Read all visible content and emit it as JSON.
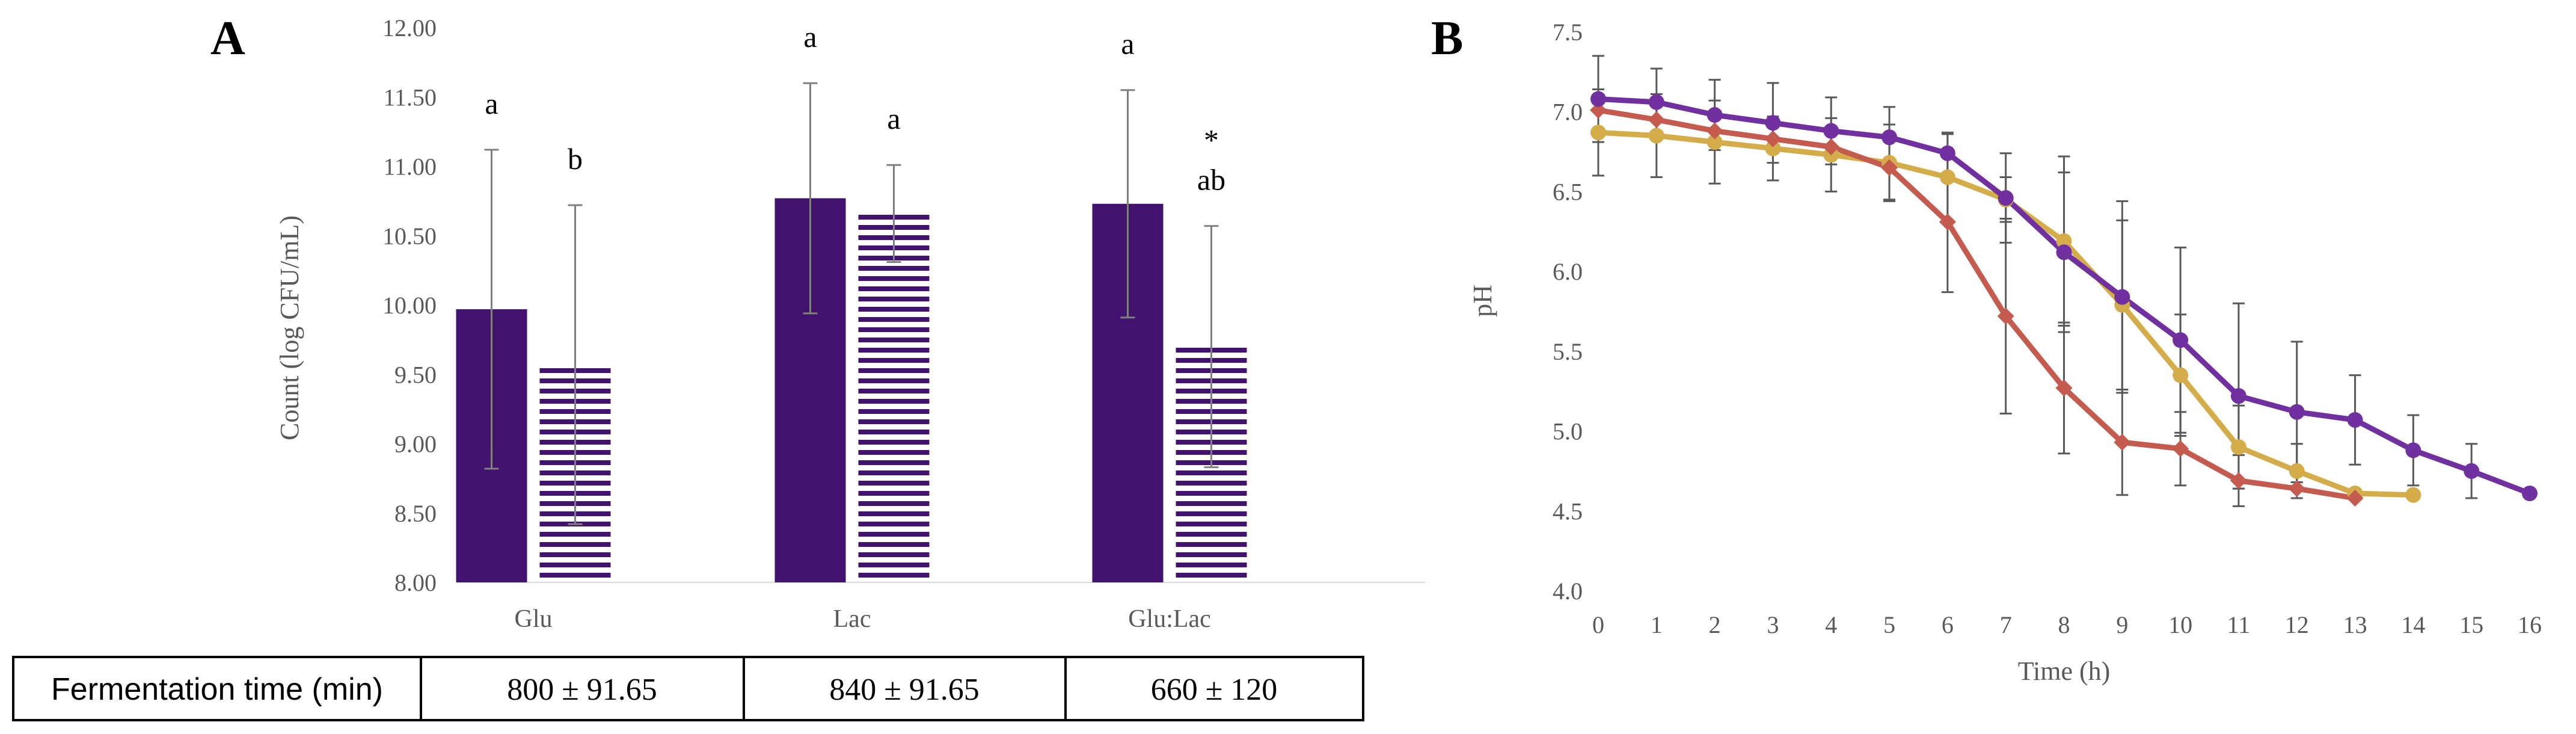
{
  "chart_data": [
    {
      "type": "bar",
      "panel": "A",
      "ylabel": "Count (log CFU/mL)",
      "ylim": [
        8.0,
        12.0
      ],
      "yticks": [
        "8.00",
        "8.50",
        "9.00",
        "9.50",
        "10.00",
        "10.50",
        "11.00",
        "11.50",
        "12.00"
      ],
      "categories": [
        "Glu",
        "Lac",
        "Glu:Lac"
      ],
      "series": [
        {
          "name": "solid",
          "color": "#41136f",
          "pattern": "solid",
          "values": [
            9.97,
            10.77,
            10.73
          ],
          "errors": [
            1.15,
            0.83,
            0.82
          ],
          "labels": [
            "a",
            "a",
            "a"
          ]
        },
        {
          "name": "striped",
          "color": "#41136f",
          "pattern": "horizontal-stripes",
          "values": [
            9.57,
            10.66,
            9.7
          ],
          "errors": [
            1.15,
            0.35,
            0.87
          ],
          "labels": [
            "b",
            "a",
            "ab"
          ],
          "marks": [
            "",
            "",
            "*"
          ]
        }
      ],
      "table": {
        "header": "Fermentation time (min)",
        "values": [
          "800 ± 91.65",
          "840 ± 91.65",
          "660 ± 120"
        ]
      }
    },
    {
      "type": "line",
      "panel": "B",
      "xlabel": "Time (h)",
      "ylabel": "pH",
      "xlim": [
        0,
        16
      ],
      "ylim": [
        4.0,
        7.5
      ],
      "xticks": [
        "0",
        "1",
        "2",
        "3",
        "4",
        "5",
        "6",
        "7",
        "8",
        "9",
        "10",
        "11",
        "12",
        "13",
        "14",
        "15",
        "16"
      ],
      "yticks": [
        "4.0",
        "4.5",
        "5.0",
        "5.5",
        "6.0",
        "6.5",
        "7.0",
        "7.5"
      ],
      "series": [
        {
          "name": "purple",
          "color": "#7030a0",
          "marker": "circle",
          "x": [
            0,
            1,
            2,
            3,
            4,
            5,
            6,
            7,
            8,
            9,
            10,
            11,
            12,
            13,
            14,
            15,
            16
          ],
          "y": [
            7.08,
            7.06,
            6.98,
            6.93,
            6.88,
            6.84,
            6.74,
            6.46,
            6.12,
            5.84,
            5.57,
            5.22,
            5.12,
            5.07,
            4.88,
            4.75,
            4.61
          ],
          "errors": [
            0.27,
            0.21,
            0.22,
            0.25,
            0.21,
            0.19,
            0.13,
            0.28,
            0.5,
            0.6,
            0.58,
            0.58,
            0.44,
            0.28,
            0.22,
            0.17,
            0
          ]
        },
        {
          "name": "red",
          "color": "#c55a4f",
          "marker": "diamond",
          "x": [
            0,
            1,
            2,
            3,
            4,
            5,
            6,
            7,
            8,
            9,
            10,
            11,
            12,
            13
          ],
          "y": [
            7.01,
            6.95,
            6.88,
            6.83,
            6.78,
            6.65,
            6.31,
            5.72,
            5.27,
            4.93,
            4.89,
            4.69,
            4.64,
            4.58
          ],
          "errors": [
            0,
            0,
            0,
            0,
            0,
            0.2,
            0.44,
            0.61,
            0.41,
            0.33,
            0.23,
            0.16,
            0,
            0
          ]
        },
        {
          "name": "gold",
          "color": "#d4ad4a",
          "marker": "circle",
          "x": [
            0,
            1,
            2,
            3,
            4,
            5,
            6,
            7,
            8,
            9,
            10,
            11,
            12,
            13,
            14
          ],
          "y": [
            6.87,
            6.85,
            6.81,
            6.77,
            6.73,
            6.68,
            6.59,
            6.45,
            6.19,
            5.79,
            5.35,
            4.9,
            4.75,
            4.61,
            4.6
          ],
          "errors": [
            0.27,
            0.26,
            0.26,
            0.2,
            0.23,
            0.24,
            0.27,
            0.14,
            0.53,
            0.53,
            0.38,
            0.26,
            0.17,
            0,
            0
          ]
        }
      ]
    }
  ]
}
